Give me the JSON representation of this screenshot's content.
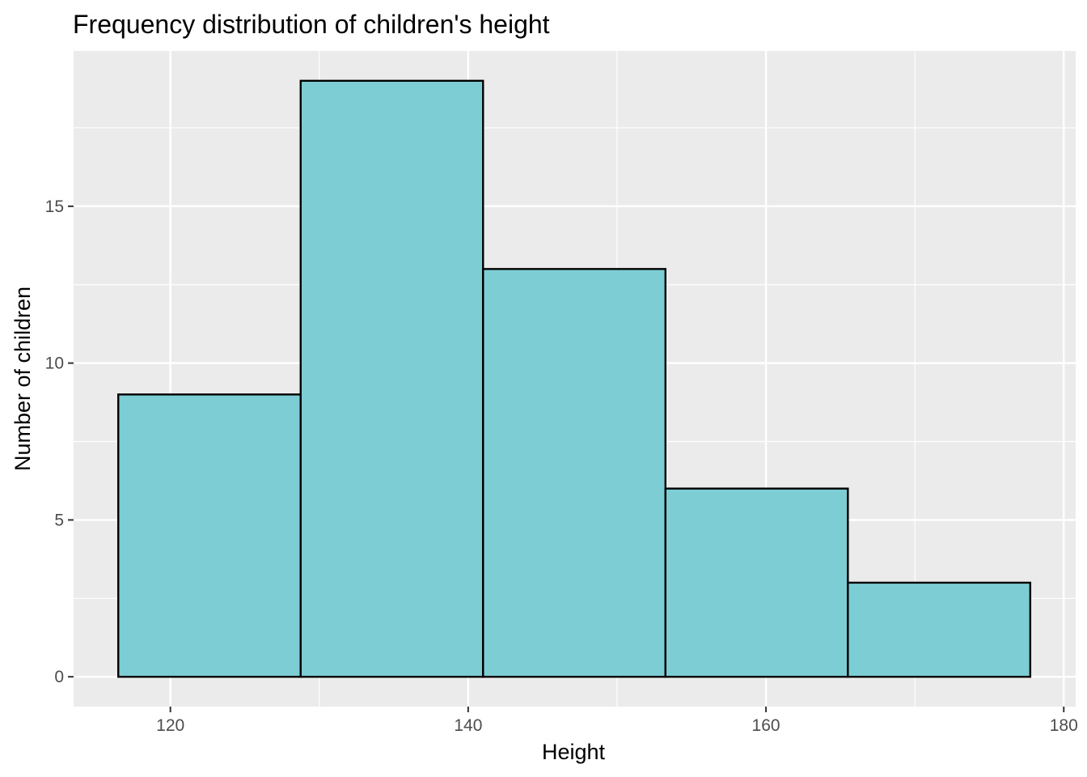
{
  "chart_data": {
    "type": "bar",
    "title": "Frequency distribution of children's height",
    "xlabel": "Height",
    "ylabel": "Number of children",
    "bins": [
      {
        "start": 116.5,
        "end": 128.75,
        "count": 9
      },
      {
        "start": 128.75,
        "end": 141.0,
        "count": 19
      },
      {
        "start": 141.0,
        "end": 153.25,
        "count": 13
      },
      {
        "start": 153.25,
        "end": 165.5,
        "count": 6
      },
      {
        "start": 165.5,
        "end": 177.75,
        "count": 3
      }
    ],
    "xlim": [
      113.5,
      180.8
    ],
    "ylim": [
      -0.95,
      19.95
    ],
    "x_ticks": [
      120,
      140,
      160,
      180
    ],
    "y_ticks": [
      0,
      5,
      10,
      15
    ],
    "grid": true,
    "colors": {
      "bar_fill": "#78ccd3",
      "bar_stroke": "#000000",
      "panel_background": "#ebebeb",
      "grid": "#ffffff"
    }
  }
}
